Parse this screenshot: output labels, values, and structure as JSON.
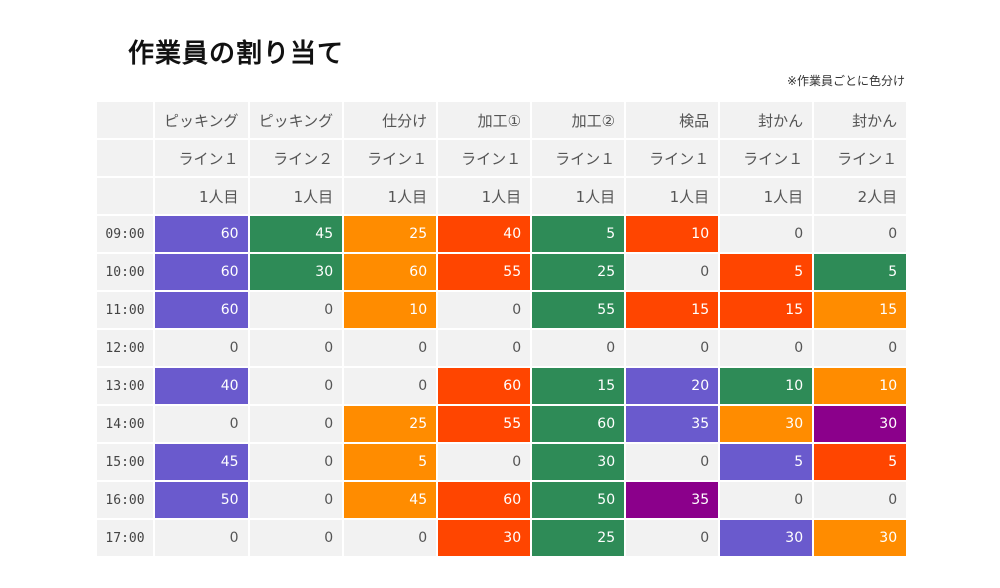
{
  "title": "作業員の割り当て",
  "note": "※作業員ごとに色分け",
  "chart_data": {
    "type": "heatmap",
    "columns": [
      {
        "process": "ピッキング",
        "line": "ライン１",
        "worker": "1人目"
      },
      {
        "process": "ピッキング",
        "line": "ライン２",
        "worker": "1人目"
      },
      {
        "process": "仕分け",
        "line": "ライン１",
        "worker": "1人目"
      },
      {
        "process": "加工①",
        "line": "ライン１",
        "worker": "1人目"
      },
      {
        "process": "加工②",
        "line": "ライン１",
        "worker": "1人目"
      },
      {
        "process": "検品",
        "line": "ライン１",
        "worker": "1人目"
      },
      {
        "process": "封かん",
        "line": "ライン１",
        "worker": "1人目"
      },
      {
        "process": "封かん",
        "line": "ライン１",
        "worker": "2人目"
      }
    ],
    "times": [
      "09:00",
      "10:00",
      "11:00",
      "12:00",
      "13:00",
      "14:00",
      "15:00",
      "16:00",
      "17:00"
    ],
    "values": [
      [
        60,
        45,
        25,
        40,
        5,
        10,
        0,
        0
      ],
      [
        60,
        30,
        60,
        55,
        25,
        0,
        5,
        5
      ],
      [
        60,
        0,
        10,
        0,
        55,
        15,
        15,
        15
      ],
      [
        0,
        0,
        0,
        0,
        0,
        0,
        0,
        0
      ],
      [
        40,
        0,
        0,
        60,
        15,
        20,
        10,
        10
      ],
      [
        0,
        0,
        25,
        55,
        60,
        35,
        30,
        30
      ],
      [
        45,
        0,
        5,
        0,
        30,
        0,
        5,
        5
      ],
      [
        50,
        0,
        45,
        60,
        50,
        35,
        0,
        0
      ],
      [
        0,
        0,
        0,
        30,
        25,
        0,
        30,
        30
      ]
    ],
    "palette": {
      "P": "#6a5acd",
      "G": "#2e8b57",
      "O": "#ff8c00",
      "R": "#ff4500",
      "M": "#8b008b",
      "empty": "#f2f2f2"
    },
    "colors": [
      [
        "P",
        "G",
        "O",
        "R",
        "G",
        "R",
        "",
        ""
      ],
      [
        "P",
        "G",
        "O",
        "R",
        "G",
        "",
        "R",
        "G"
      ],
      [
        "P",
        "",
        "O",
        "",
        "G",
        "R",
        "R",
        "O"
      ],
      [
        "",
        "",
        "",
        "",
        "",
        "",
        "",
        ""
      ],
      [
        "P",
        "",
        "",
        "R",
        "G",
        "P",
        "G",
        "O"
      ],
      [
        "",
        "",
        "O",
        "R",
        "G",
        "P",
        "O",
        "M"
      ],
      [
        "P",
        "",
        "O",
        "",
        "G",
        "",
        "P",
        "R"
      ],
      [
        "P",
        "",
        "O",
        "R",
        "G",
        "M",
        "",
        ""
      ],
      [
        "",
        "",
        "",
        "R",
        "G",
        "",
        "P",
        "O"
      ]
    ]
  }
}
